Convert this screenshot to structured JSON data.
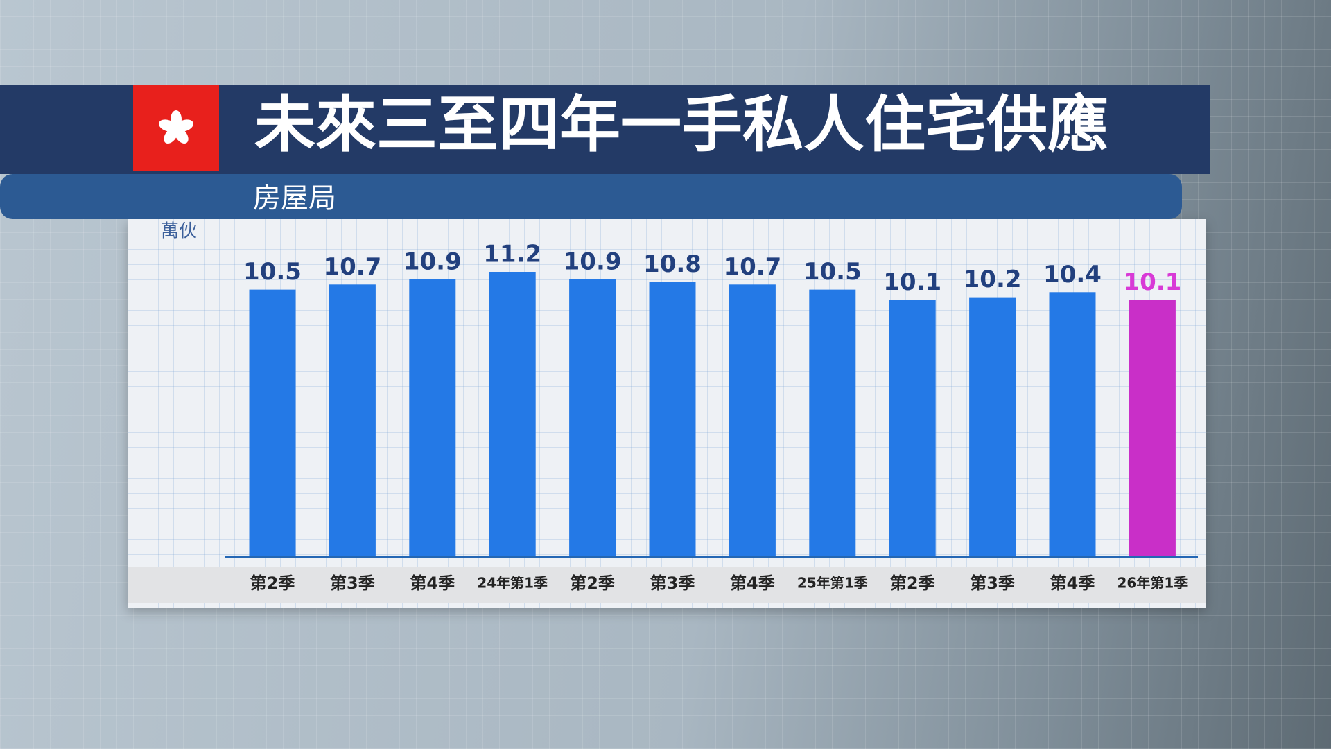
{
  "chart_data": {
    "type": "bar",
    "title": "未來三至四年一手私人住宅供應",
    "subtitle": "房屋局",
    "unit": "萬伙",
    "categories": [
      "第2季",
      "第3季",
      "第4季",
      "24年第1季",
      "第2季",
      "第3季",
      "第4季",
      "25年第1季",
      "第2季",
      "第3季",
      "第4季",
      "26年第1季"
    ],
    "values": [
      10.5,
      10.7,
      10.9,
      11.2,
      10.9,
      10.8,
      10.7,
      10.5,
      10.1,
      10.2,
      10.4,
      10.1
    ],
    "colors": [
      "#2479e6",
      "#2479e6",
      "#2479e6",
      "#2479e6",
      "#2479e6",
      "#2479e6",
      "#2479e6",
      "#2479e6",
      "#2479e6",
      "#2479e6",
      "#2479e6",
      "#c92fc8"
    ],
    "label_colors": [
      "#22407e",
      "#22407e",
      "#22407e",
      "#22407e",
      "#22407e",
      "#22407e",
      "#22407e",
      "#22407e",
      "#22407e",
      "#22407e",
      "#22407e",
      "#d83ad6"
    ],
    "ylim": [
      0,
      11.2
    ]
  }
}
